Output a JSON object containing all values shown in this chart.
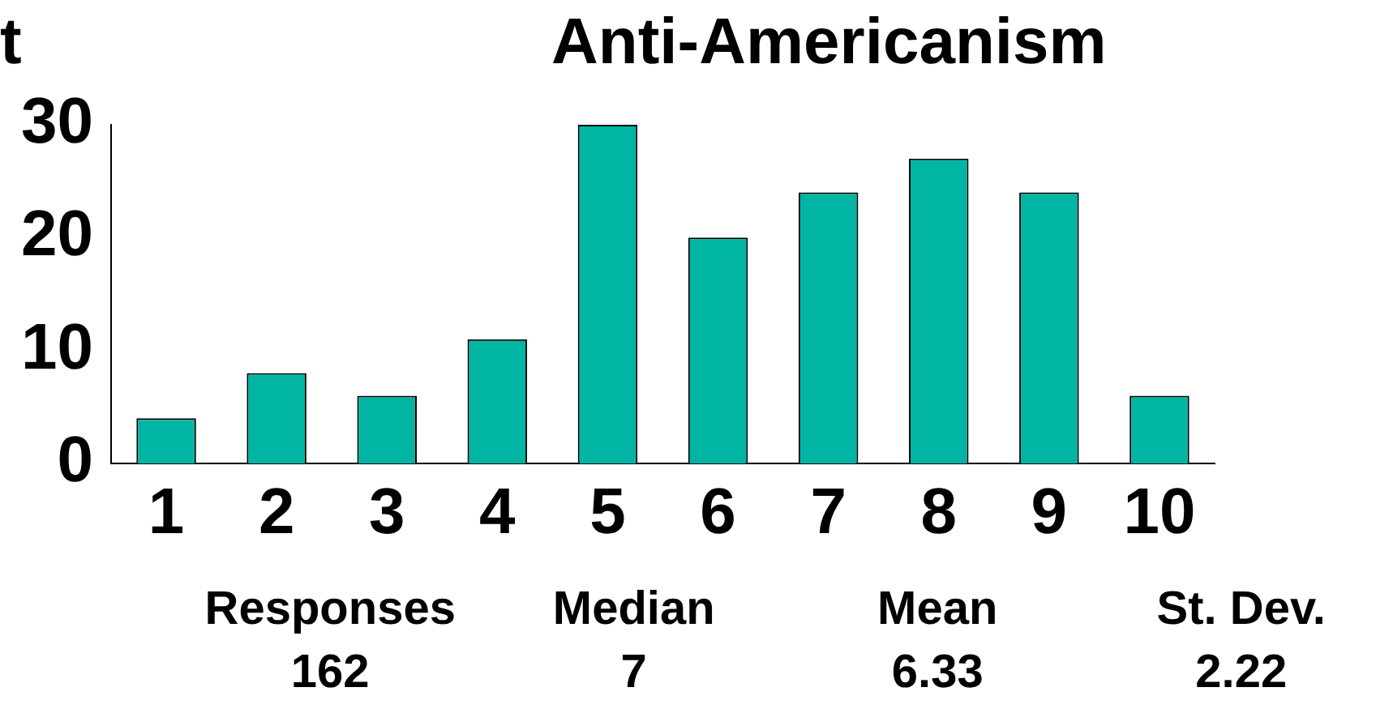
{
  "chart_data": {
    "type": "bar",
    "title": "Anti-Americanism",
    "categories": [
      "1",
      "2",
      "3",
      "4",
      "5",
      "6",
      "7",
      "8",
      "9",
      "10"
    ],
    "values": [
      4,
      8,
      6,
      11,
      30,
      20,
      24,
      27,
      24,
      6
    ],
    "color": "#00b5a3",
    "ylim": [
      0,
      30
    ],
    "yticks": [
      0,
      10,
      20,
      30
    ],
    "grid": false,
    "legend": false,
    "annotations": [
      "t",
      "Responses",
      "162",
      "Median",
      "7",
      "Mean",
      "6.33",
      "St. Dev.",
      "2.22"
    ]
  }
}
